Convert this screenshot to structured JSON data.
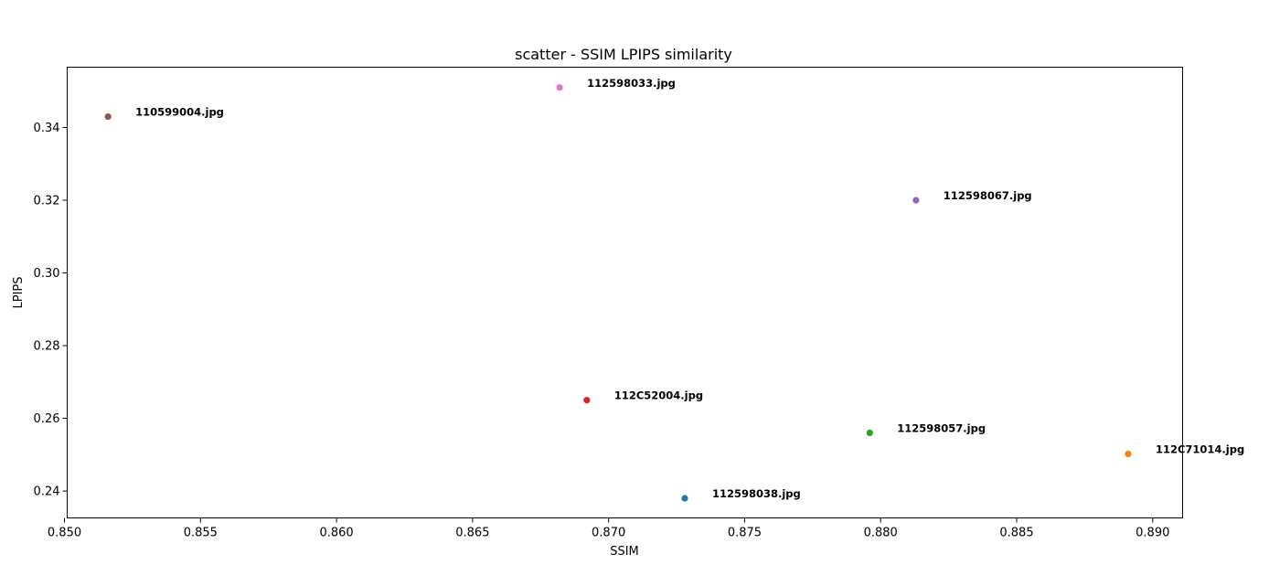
{
  "chart_data": {
    "type": "scatter",
    "title": "scatter - SSIM LPIPS similarity",
    "xlabel": "SSIM",
    "ylabel": "LPIPS",
    "xlim": [
      0.8501,
      0.8911
    ],
    "ylim": [
      0.2326,
      0.3566
    ],
    "xticks": [
      "0.850",
      "0.855",
      "0.860",
      "0.865",
      "0.870",
      "0.875",
      "0.880",
      "0.885",
      "0.890"
    ],
    "xtick_values": [
      0.85,
      0.855,
      0.86,
      0.865,
      0.87,
      0.875,
      0.88,
      0.885,
      0.89
    ],
    "yticks": [
      "0.24",
      "0.26",
      "0.28",
      "0.30",
      "0.32",
      "0.34"
    ],
    "ytick_values": [
      0.24,
      0.26,
      0.28,
      0.3,
      0.32,
      0.34
    ],
    "grid": false,
    "points": [
      {
        "label": "112598038.jpg",
        "x": 0.8728,
        "y": 0.238,
        "color": "#1f77b4"
      },
      {
        "label": "112C71014.jpg",
        "x": 0.8891,
        "y": 0.2502,
        "color": "#ff7f0e"
      },
      {
        "label": "112598057.jpg",
        "x": 0.8796,
        "y": 0.256,
        "color": "#2ca02c"
      },
      {
        "label": "112C52004.jpg",
        "x": 0.8692,
        "y": 0.265,
        "color": "#d62728"
      },
      {
        "label": "112598067.jpg",
        "x": 0.8813,
        "y": 0.32,
        "color": "#9467bd"
      },
      {
        "label": "110599004.jpg",
        "x": 0.8516,
        "y": 0.343,
        "color": "#8c564b"
      },
      {
        "label": "112598033.jpg",
        "x": 0.8682,
        "y": 0.351,
        "color": "#e377c2"
      }
    ]
  }
}
